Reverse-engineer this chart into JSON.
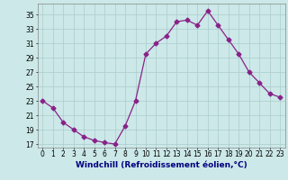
{
  "hours": [
    0,
    1,
    2,
    3,
    4,
    5,
    6,
    7,
    8,
    9,
    10,
    11,
    12,
    13,
    14,
    15,
    16,
    17,
    18,
    19,
    20,
    21,
    22,
    23
  ],
  "values": [
    23,
    22,
    20,
    19,
    18,
    17.5,
    17.2,
    17,
    19.5,
    23,
    29.5,
    31,
    32,
    34,
    34.2,
    33.5,
    35.5,
    33.5,
    31.5,
    29.5,
    27,
    25.5,
    24,
    23.5
  ],
  "line_color": "#882288",
  "marker_color": "#882288",
  "bg_color": "#cce8e8",
  "grid_color": "#aacccc",
  "xlabel": "Windchill (Refroidissement éolien,°C)",
  "xlim": [
    -0.5,
    23.5
  ],
  "ylim": [
    16.5,
    36.5
  ],
  "yticks": [
    17,
    19,
    21,
    23,
    25,
    27,
    29,
    31,
    33,
    35
  ],
  "xtick_labels": [
    "0",
    "1",
    "2",
    "3",
    "4",
    "5",
    "6",
    "7",
    "8",
    "9",
    "10",
    "11",
    "12",
    "13",
    "14",
    "15",
    "16",
    "17",
    "18",
    "19",
    "20",
    "21",
    "22",
    "23"
  ],
  "tick_fontsize": 5.5,
  "xlabel_fontsize": 6.5,
  "marker_size": 2.5,
  "linewidth": 0.9
}
